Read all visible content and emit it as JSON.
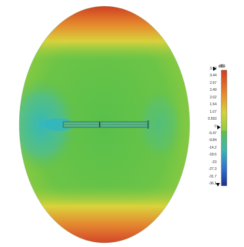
{
  "colors": {
    "red": "#d23a1f",
    "orange": "#e98b2b",
    "yellow": "#d6d23a",
    "yellowgreen": "#9ccb3a",
    "green": "#5fbf4a",
    "cyan": "#3ab7b0",
    "blue": "#2e6fd0",
    "navy": "#1c2f8f"
  },
  "legend": {
    "unit": "dBi",
    "ticks": [
      "3.92",
      "3.44",
      "2.97",
      "2.49",
      "2.02",
      "1.54",
      "1.07",
      "0.593",
      "0",
      "-5.47",
      "-9.84",
      "-14.2",
      "-18.6",
      "-23",
      "-27.3",
      "-31.7",
      "-36.1"
    ]
  }
}
